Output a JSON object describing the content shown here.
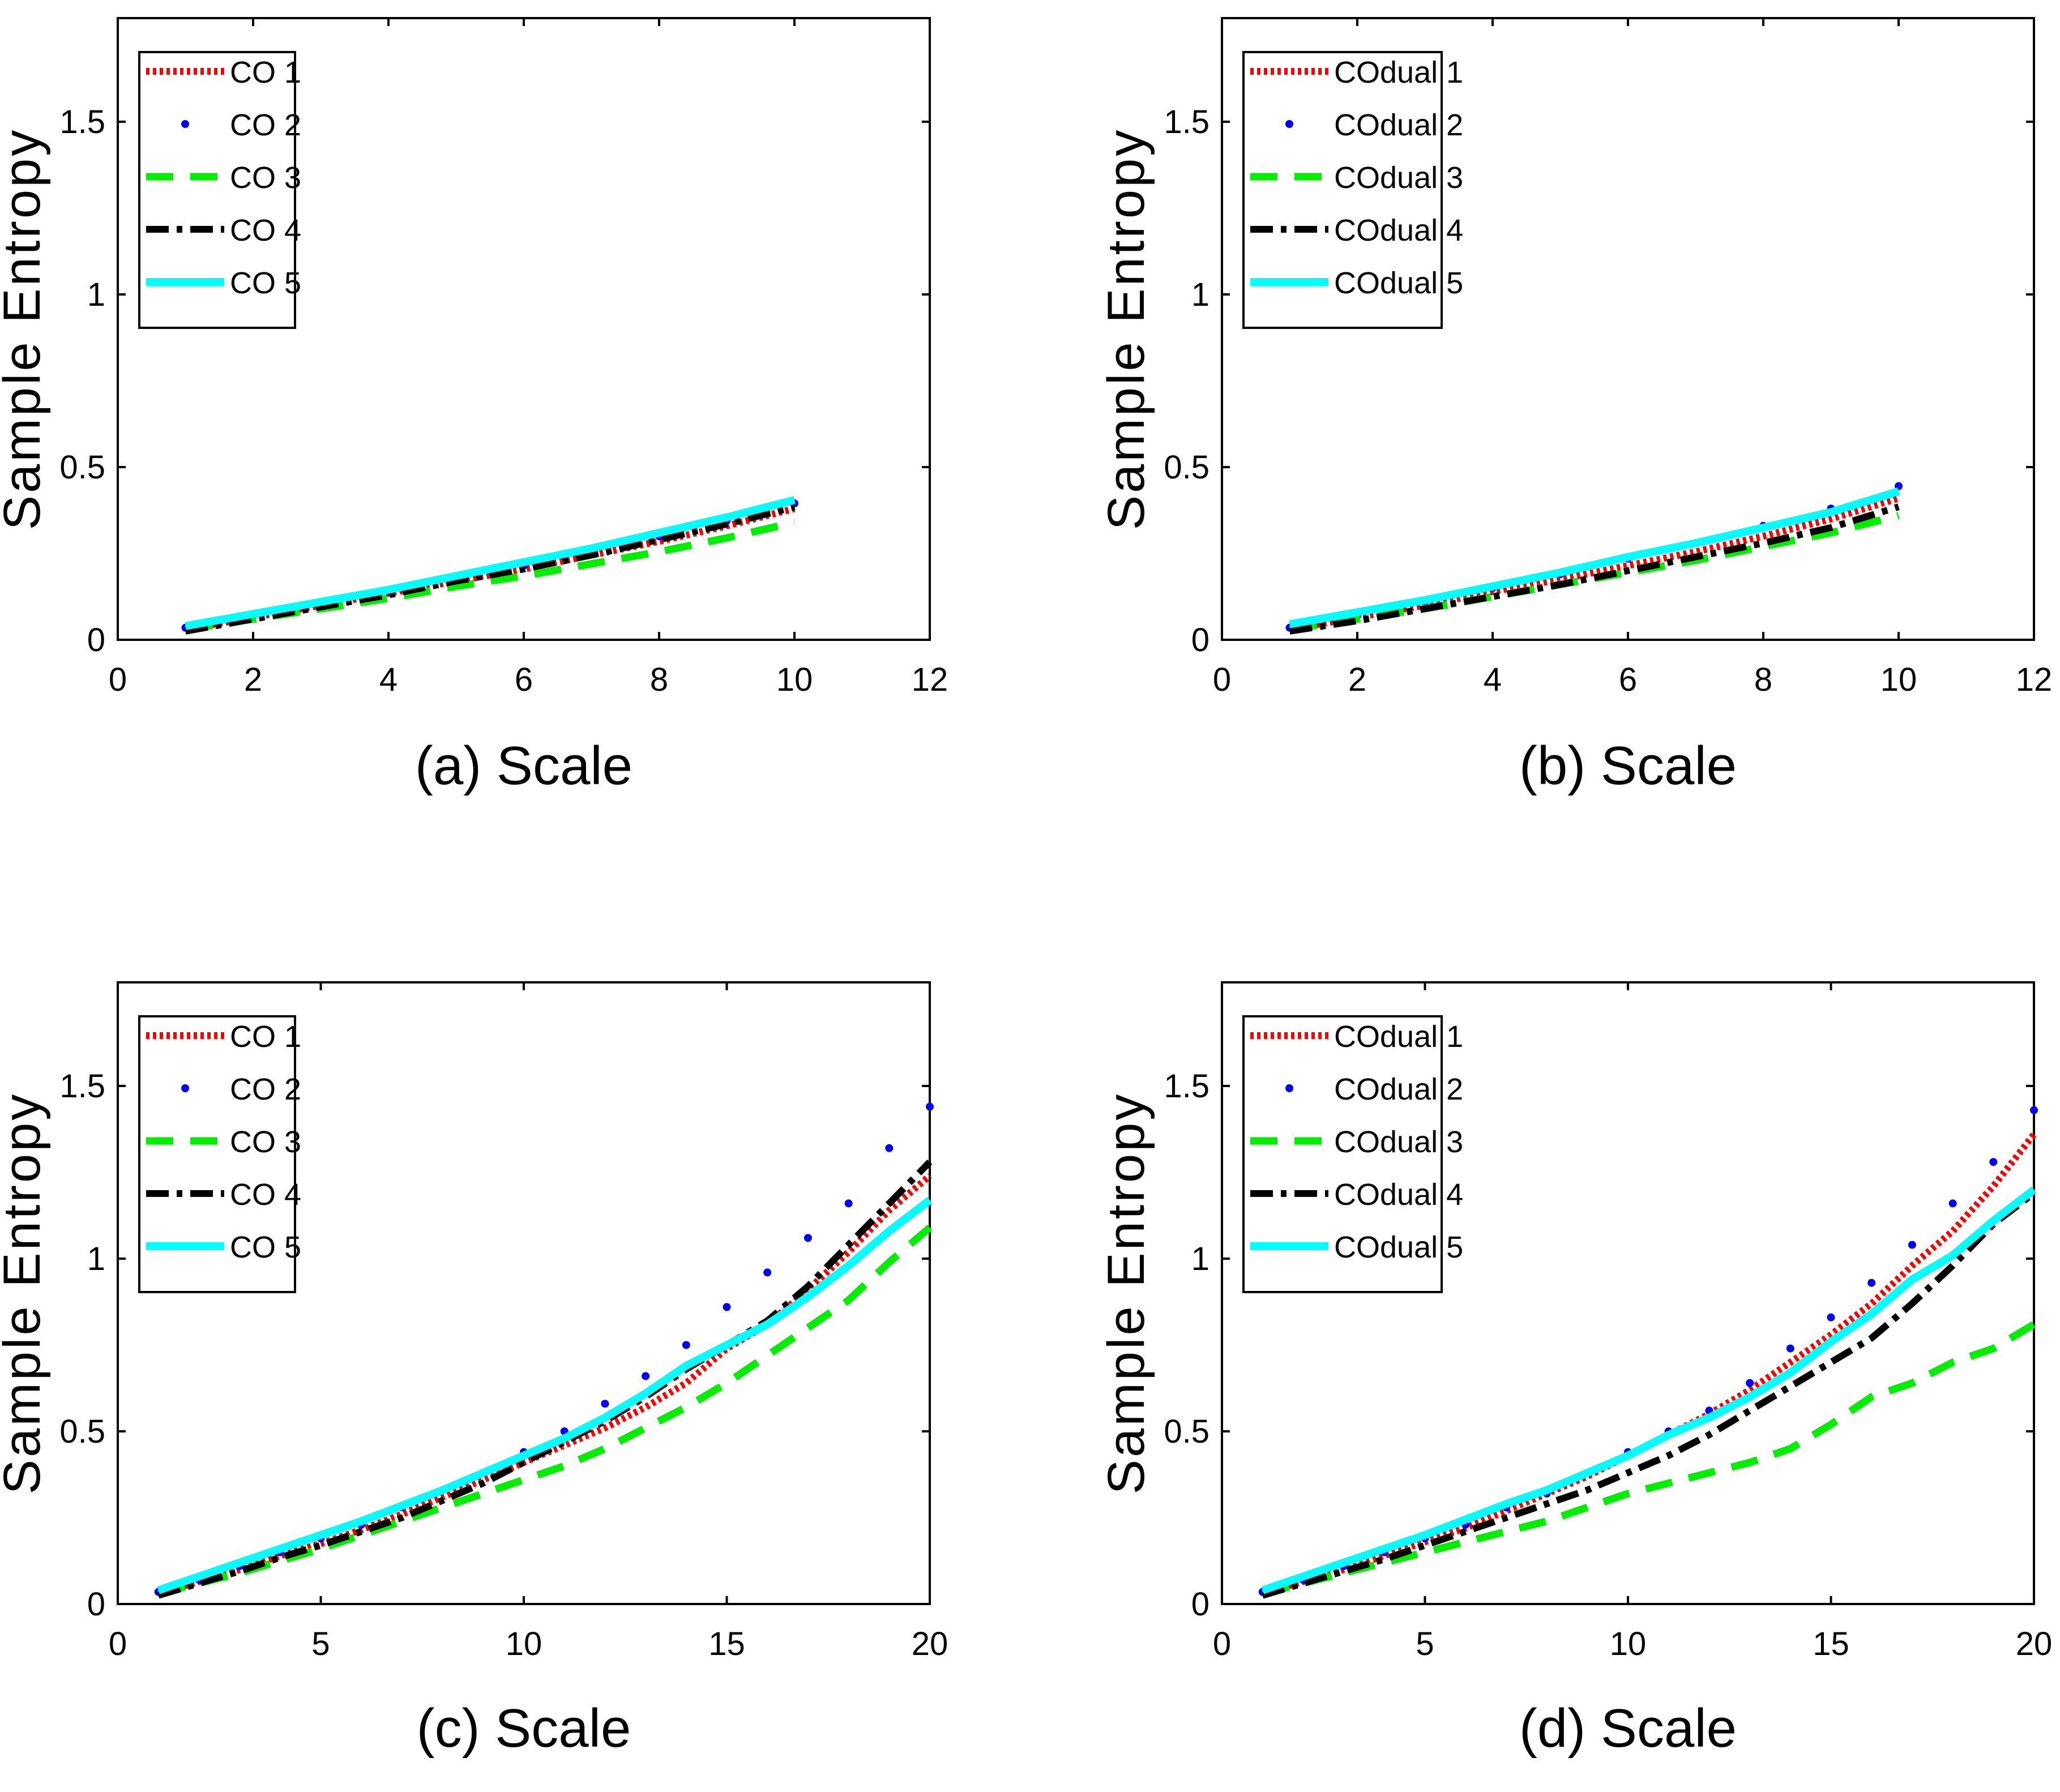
{
  "colors": {
    "s1": "#ff0000",
    "s2": "#0000ff",
    "s3": "#00ee00",
    "s4": "#000000",
    "s5": "#00ffff"
  },
  "chart_data": [
    {
      "type": "line",
      "caption": "(a) Scale",
      "ylabel": "Sample Entropy",
      "xlim": [
        0,
        12
      ],
      "ylim": [
        0,
        1.8
      ],
      "xticks": [
        "0",
        "2",
        "4",
        "6",
        "8",
        "10",
        "12"
      ],
      "xtick_values": [
        0,
        2,
        4,
        6,
        8,
        10,
        12
      ],
      "yticks": [
        "0",
        "0.5",
        "1",
        "1.5"
      ],
      "ytick_values": [
        0,
        0.5,
        1,
        1.5
      ],
      "legend_position": "top-left",
      "x": [
        1,
        2,
        3,
        4,
        5,
        6,
        7,
        8,
        9,
        10
      ],
      "series": [
        {
          "name": "CO 1",
          "style": "dotted",
          "values": [
            0.03,
            0.065,
            0.1,
            0.135,
            0.17,
            0.205,
            0.245,
            0.285,
            0.33,
            0.38
          ]
        },
        {
          "name": "CO 2",
          "style": "points",
          "values": [
            0.035,
            0.07,
            0.105,
            0.14,
            0.18,
            0.215,
            0.255,
            0.3,
            0.345,
            0.395
          ]
        },
        {
          "name": "CO 3",
          "style": "dashed",
          "values": [
            0.03,
            0.06,
            0.09,
            0.12,
            0.155,
            0.185,
            0.22,
            0.255,
            0.295,
            0.34
          ]
        },
        {
          "name": "CO 4",
          "style": "dashdot",
          "values": [
            0.025,
            0.06,
            0.095,
            0.13,
            0.17,
            0.205,
            0.245,
            0.29,
            0.335,
            0.385
          ]
        },
        {
          "name": "CO 5",
          "style": "solid",
          "values": [
            0.04,
            0.075,
            0.11,
            0.145,
            0.185,
            0.225,
            0.265,
            0.31,
            0.355,
            0.405
          ]
        }
      ]
    },
    {
      "type": "line",
      "caption": "(b) Scale",
      "ylabel": "Sample Entropy",
      "xlim": [
        0,
        12
      ],
      "ylim": [
        0,
        1.8
      ],
      "xticks": [
        "0",
        "2",
        "4",
        "6",
        "8",
        "10",
        "12"
      ],
      "xtick_values": [
        0,
        2,
        4,
        6,
        8,
        10,
        12
      ],
      "yticks": [
        "0",
        "0.5",
        "1",
        "1.5"
      ],
      "ytick_values": [
        0,
        0.5,
        1,
        1.5
      ],
      "legend_position": "top-left",
      "x": [
        1,
        2,
        3,
        4,
        5,
        6,
        7,
        8,
        9,
        10
      ],
      "series": [
        {
          "name": "COdual 1",
          "style": "dotted",
          "values": [
            0.03,
            0.065,
            0.1,
            0.14,
            0.175,
            0.215,
            0.255,
            0.3,
            0.35,
            0.41
          ]
        },
        {
          "name": "COdual 2",
          "style": "points",
          "values": [
            0.035,
            0.07,
            0.11,
            0.15,
            0.19,
            0.235,
            0.28,
            0.33,
            0.38,
            0.445
          ]
        },
        {
          "name": "COdual 3",
          "style": "dashed",
          "values": [
            0.03,
            0.06,
            0.09,
            0.125,
            0.16,
            0.195,
            0.23,
            0.27,
            0.31,
            0.36
          ]
        },
        {
          "name": "COdual 4",
          "style": "dashdot",
          "values": [
            0.025,
            0.055,
            0.09,
            0.125,
            0.16,
            0.2,
            0.24,
            0.28,
            0.325,
            0.385
          ]
        },
        {
          "name": "COdual 5",
          "style": "solid",
          "values": [
            0.045,
            0.08,
            0.115,
            0.155,
            0.195,
            0.24,
            0.28,
            0.325,
            0.37,
            0.43
          ]
        }
      ]
    },
    {
      "type": "line",
      "caption": "(c) Scale",
      "ylabel": "Sample Entropy",
      "xlim": [
        0,
        20
      ],
      "ylim": [
        0,
        1.8
      ],
      "xticks": [
        "0",
        "5",
        "10",
        "15",
        "20"
      ],
      "xtick_values": [
        0,
        5,
        10,
        15,
        20
      ],
      "yticks": [
        "0",
        "0.5",
        "1",
        "1.5"
      ],
      "ytick_values": [
        0,
        0.5,
        1,
        1.5
      ],
      "legend_position": "top-left",
      "x": [
        1,
        2,
        3,
        4,
        5,
        6,
        7,
        8,
        9,
        10,
        11,
        12,
        13,
        14,
        15,
        16,
        17,
        18,
        19,
        20
      ],
      "series": [
        {
          "name": "CO 1",
          "style": "dotted",
          "values": [
            0.03,
            0.065,
            0.1,
            0.14,
            0.175,
            0.215,
            0.26,
            0.31,
            0.36,
            0.41,
            0.46,
            0.51,
            0.57,
            0.64,
            0.74,
            0.81,
            0.91,
            1.02,
            1.14,
            1.24
          ]
        },
        {
          "name": "CO 2",
          "style": "points",
          "values": [
            0.035,
            0.07,
            0.11,
            0.15,
            0.19,
            0.23,
            0.28,
            0.33,
            0.38,
            0.44,
            0.5,
            0.58,
            0.66,
            0.75,
            0.86,
            0.96,
            1.06,
            1.16,
            1.32,
            1.44
          ]
        },
        {
          "name": "CO 3",
          "style": "dashed",
          "values": [
            0.03,
            0.06,
            0.09,
            0.125,
            0.16,
            0.2,
            0.24,
            0.28,
            0.32,
            0.36,
            0.4,
            0.45,
            0.51,
            0.57,
            0.64,
            0.72,
            0.8,
            0.88,
            0.99,
            1.09
          ]
        },
        {
          "name": "CO 4",
          "style": "dashdot",
          "values": [
            0.025,
            0.06,
            0.095,
            0.135,
            0.17,
            0.21,
            0.25,
            0.3,
            0.35,
            0.41,
            0.47,
            0.53,
            0.6,
            0.68,
            0.75,
            0.82,
            0.92,
            1.04,
            1.16,
            1.28
          ]
        },
        {
          "name": "CO 5",
          "style": "solid",
          "values": [
            0.04,
            0.08,
            0.12,
            0.16,
            0.2,
            0.24,
            0.285,
            0.33,
            0.38,
            0.43,
            0.48,
            0.54,
            0.61,
            0.69,
            0.75,
            0.81,
            0.89,
            0.98,
            1.08,
            1.17
          ]
        }
      ]
    },
    {
      "type": "line",
      "caption": "(d) Scale",
      "ylabel": "Sample Entropy",
      "xlim": [
        0,
        20
      ],
      "ylim": [
        0,
        1.8
      ],
      "xticks": [
        "0",
        "5",
        "10",
        "15",
        "20"
      ],
      "xtick_values": [
        0,
        5,
        10,
        15,
        20
      ],
      "yticks": [
        "0",
        "0.5",
        "1",
        "1.5"
      ],
      "ytick_values": [
        0,
        0.5,
        1,
        1.5
      ],
      "legend_position": "top-left",
      "x": [
        1,
        2,
        3,
        4,
        5,
        6,
        7,
        8,
        9,
        10,
        11,
        12,
        13,
        14,
        15,
        16,
        17,
        18,
        19,
        20
      ],
      "series": [
        {
          "name": "COdual 1",
          "style": "dotted",
          "values": [
            0.03,
            0.065,
            0.1,
            0.14,
            0.18,
            0.22,
            0.27,
            0.32,
            0.37,
            0.43,
            0.49,
            0.55,
            0.62,
            0.7,
            0.78,
            0.87,
            0.98,
            1.08,
            1.21,
            1.36
          ]
        },
        {
          "name": "COdual 2",
          "style": "points",
          "values": [
            0.035,
            0.07,
            0.11,
            0.15,
            0.19,
            0.23,
            0.28,
            0.32,
            0.38,
            0.44,
            0.5,
            0.56,
            0.64,
            0.74,
            0.83,
            0.93,
            1.04,
            1.16,
            1.28,
            1.43
          ]
        },
        {
          "name": "COdual 3",
          "style": "dashed",
          "values": [
            0.03,
            0.06,
            0.09,
            0.12,
            0.15,
            0.18,
            0.21,
            0.24,
            0.28,
            0.32,
            0.35,
            0.38,
            0.41,
            0.45,
            0.52,
            0.6,
            0.64,
            0.7,
            0.74,
            0.81
          ]
        },
        {
          "name": "COdual 4",
          "style": "dashdot",
          "values": [
            0.025,
            0.06,
            0.095,
            0.13,
            0.17,
            0.21,
            0.25,
            0.29,
            0.33,
            0.38,
            0.43,
            0.49,
            0.56,
            0.63,
            0.7,
            0.77,
            0.87,
            0.98,
            1.1,
            1.19
          ]
        },
        {
          "name": "COdual 5",
          "style": "solid",
          "values": [
            0.04,
            0.08,
            0.12,
            0.16,
            0.2,
            0.245,
            0.29,
            0.33,
            0.38,
            0.43,
            0.49,
            0.54,
            0.6,
            0.67,
            0.76,
            0.84,
            0.94,
            1.01,
            1.11,
            1.2
          ]
        }
      ]
    }
  ]
}
